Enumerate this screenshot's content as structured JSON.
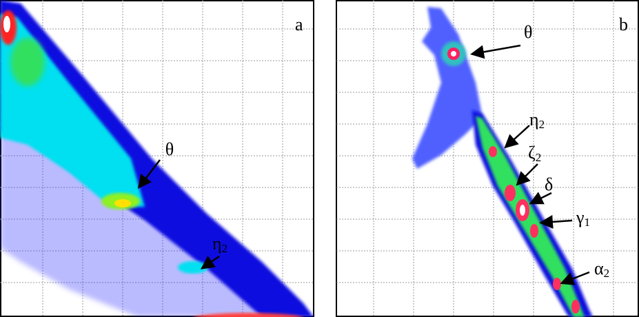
{
  "panels": [
    {
      "label": "a",
      "annotations": [
        {
          "label": "θ"
        },
        {
          "label": "η",
          "sub": "2"
        }
      ]
    },
    {
      "label": "b",
      "annotations": [
        {
          "label": "θ"
        },
        {
          "label": "η",
          "sub": "2"
        },
        {
          "label": "ζ",
          "sub": "2"
        },
        {
          "label": "δ",
          "sub": null
        },
        {
          "label": "γ",
          "sub": "1"
        },
        {
          "label": "α",
          "sub": "2"
        }
      ]
    }
  ]
}
